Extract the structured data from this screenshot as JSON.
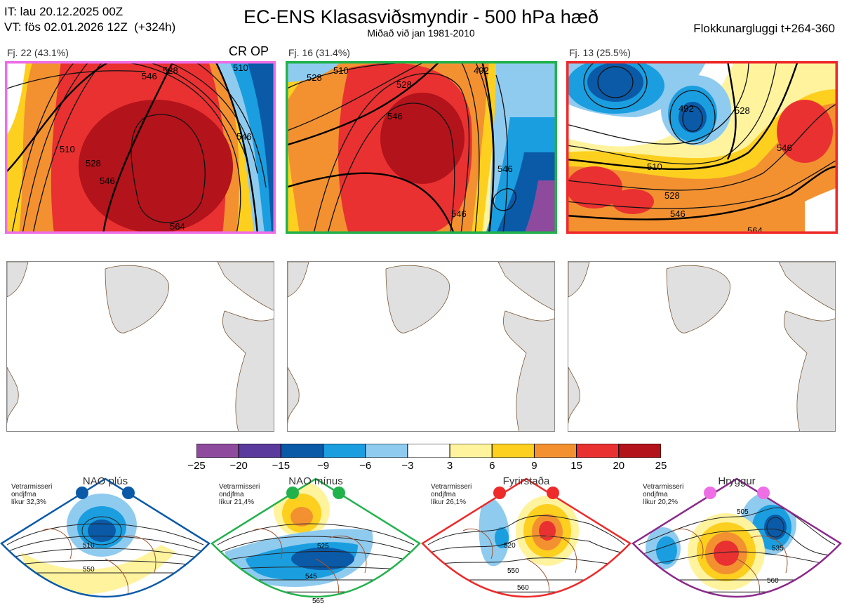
{
  "header": {
    "it_line": "IT: lau 20.12.2025 00Z",
    "vt_line": "VT: fös 02.01.2026 12Z  (+324h)",
    "title": "EC-ENS Klasasviðsmyndir - 500 hPa hæð",
    "subtitle": "Miðað við jan 1981-2010",
    "window": "Flokkunargluggi t+264-360"
  },
  "clusters": [
    {
      "label": "Fj. 22 (43.1%)",
      "border": "#ee6ee6",
      "tag": "CR OP",
      "contours": [
        "546",
        "528",
        "510",
        "546",
        "564",
        "510",
        "528",
        "546"
      ]
    },
    {
      "label": "Fj. 16 (31.4%)",
      "border": "#22b24c",
      "contours": [
        "510",
        "528",
        "492",
        "546",
        "528",
        "546",
        "546"
      ]
    },
    {
      "label": "Fj. 13 (25.5%)",
      "border": "#ee2a2a",
      "contours": [
        "492",
        "510",
        "528",
        "546",
        "564",
        "528",
        "546"
      ]
    }
  ],
  "colorbar": {
    "ticks": [
      "−25",
      "−20",
      "−15",
      "−9",
      "−6",
      "−3",
      "3",
      "6",
      "9",
      "15",
      "20",
      "25"
    ],
    "colors": [
      "#8e4b9e",
      "#5a3a9c",
      "#0a5aa8",
      "#1a9ee0",
      "#8fcbef",
      "#ffffff",
      "#fff39e",
      "#fdd01f",
      "#f39131",
      "#e93131",
      "#b3131b"
    ]
  },
  "regimes": [
    {
      "name": "NAO plús",
      "color": "#0a5aa8",
      "desc": [
        "Vetrarmisseri",
        "ondjfma",
        "líkur 32,3%"
      ],
      "contours": [
        "510",
        "550"
      ]
    },
    {
      "name": "NAO mínus",
      "color": "#22b24c",
      "desc": [
        "Vetrarmisseri",
        "ondjfma",
        "líkur 21,4%"
      ],
      "contours": [
        "525",
        "545",
        "565"
      ]
    },
    {
      "name": "Fyrirstaða",
      "color": "#ee2a2a",
      "desc": [
        "Vetrarmisseri",
        "ondjfma",
        "líkur 26,1%"
      ],
      "contours": [
        "520",
        "550",
        "560"
      ]
    },
    {
      "name": "Hryggur",
      "color": "#8b2a8b",
      "dot": "#ee6ee6",
      "desc": [
        "Vetrarmisseri",
        "ondjfma",
        "líkur 20,2%"
      ],
      "contours": [
        "505",
        "535",
        "560"
      ]
    }
  ]
}
